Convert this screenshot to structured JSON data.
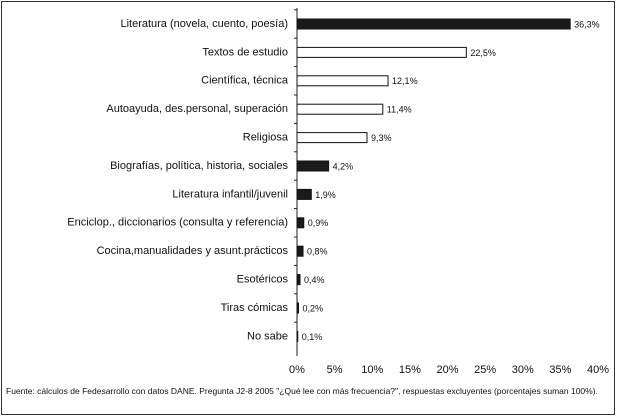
{
  "chart_data": {
    "type": "hbar",
    "categories": [
      "Literatura (novela, cuento, poesía)",
      "Textos de estudio",
      "Científica, técnica",
      "Autoayuda, des.personal, superación",
      "Religiosa",
      "Biografías, política, historia, sociales",
      "Literatura infantil/juvenil",
      "Enciclop., diccionarios (consulta y referencia)",
      "Cocina,manualidades y asunt.prácticos",
      "Esotéricos",
      "Tiras cómicas",
      "No sabe"
    ],
    "values": [
      36.3,
      22.5,
      12.1,
      11.4,
      9.3,
      4.2,
      1.9,
      0.9,
      0.8,
      0.4,
      0.2,
      0.1
    ],
    "value_labels": [
      "36,3%",
      "22,5%",
      "12,1%",
      "11,4%",
      "9,3%",
      "4,2%",
      "1,9%",
      "0,9%",
      "0,8%",
      "0,4%",
      "0,2%",
      "0,1%"
    ],
    "colors": [
      "#1a1a1a",
      "#ffffff",
      "#ffffff",
      "#ffffff",
      "#ffffff",
      "#1a1a1a",
      "#1a1a1a",
      "#1a1a1a",
      "#1a1a1a",
      "#1a1a1a",
      "#1a1a1a",
      "#1a1a1a"
    ],
    "xlim": [
      0,
      40
    ],
    "xticks": [
      {
        "value": 0,
        "label": "0%"
      },
      {
        "value": 5,
        "label": "5%"
      },
      {
        "value": 10,
        "label": "10%"
      },
      {
        "value": 15,
        "label": "15%"
      },
      {
        "value": 20,
        "label": "20%"
      },
      {
        "value": 25,
        "label": "25%"
      },
      {
        "value": 30,
        "label": "30%"
      },
      {
        "value": 35,
        "label": "35%"
      },
      {
        "value": 40,
        "label": "40%"
      }
    ],
    "note": "Fuente: cálculos de Fedesarrollo con datos DANE. Pregunta J2-8 2005 \"¿Qué lee con más frecuencia?\", respuestas excluyentes (porcentajes suman 100%)."
  }
}
